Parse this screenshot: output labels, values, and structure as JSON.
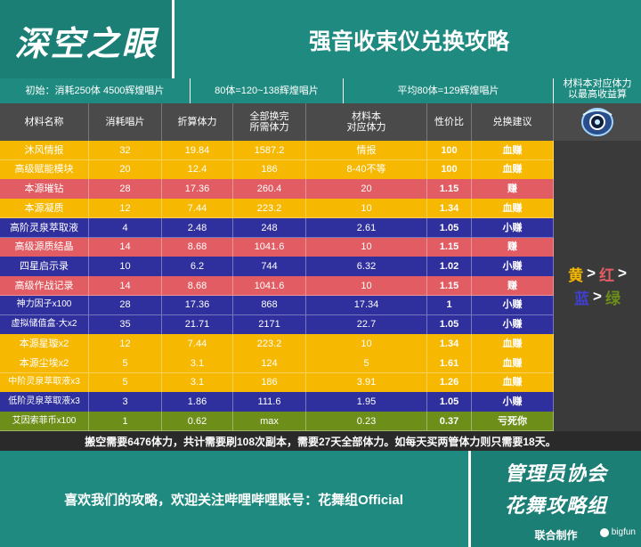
{
  "header": {
    "logo_text": "深空之眼",
    "title": "强音收束仪兑换攻略"
  },
  "info_bar": {
    "c1": "初始：消耗250体 4500辉煌唱片",
    "c2": "80体=120~138辉煌唱片",
    "c3": "平均80体=129辉煌唱片",
    "c4_line1": "材料本对应体力",
    "c4_line2": "以最高收益算"
  },
  "columns": [
    {
      "l1": "材料名称",
      "l2": ""
    },
    {
      "l1": "消耗唱片",
      "l2": ""
    },
    {
      "l1": "折算体力",
      "l2": ""
    },
    {
      "l1": "全部换完",
      "l2": "所需体力"
    },
    {
      "l1": "材料本",
      "l2": "对应体力"
    },
    {
      "l1": "性价比",
      "l2": ""
    },
    {
      "l1": "兑换建议",
      "l2": ""
    }
  ],
  "rows": [
    {
      "color": "yellow",
      "c": [
        "沐风情报",
        "32",
        "19.84",
        "1587.2",
        "情报",
        "100",
        "血赚"
      ]
    },
    {
      "color": "yellow",
      "c": [
        "高级赋能模块",
        "20",
        "12.4",
        "186",
        "8-40不等",
        "100",
        "血赚"
      ]
    },
    {
      "color": "red",
      "c": [
        "本源璀钻",
        "28",
        "17.36",
        "260.4",
        "20",
        "1.15",
        "赚"
      ]
    },
    {
      "color": "yellow",
      "c": [
        "本源凝质",
        "12",
        "7.44",
        "223.2",
        "10",
        "1.34",
        "血赚"
      ]
    },
    {
      "color": "blue",
      "c": [
        "高阶灵泉萃取液",
        "4",
        "2.48",
        "248",
        "2.61",
        "1.05",
        "小赚"
      ]
    },
    {
      "color": "red",
      "c": [
        "高级源质结晶",
        "14",
        "8.68",
        "1041.6",
        "10",
        "1.15",
        "赚"
      ]
    },
    {
      "color": "blue",
      "c": [
        "四星启示录",
        "10",
        "6.2",
        "744",
        "6.32",
        "1.02",
        "小赚"
      ]
    },
    {
      "color": "red",
      "c": [
        "高级作战记录",
        "14",
        "8.68",
        "1041.6",
        "10",
        "1.15",
        "赚"
      ]
    },
    {
      "color": "blue",
      "c": [
        "神力因子x100",
        "28",
        "17.36",
        "868",
        "17.34",
        "1",
        "小赚"
      ]
    },
    {
      "color": "blue",
      "c": [
        "虚拟储值盒·大x2",
        "35",
        "21.71",
        "2171",
        "22.7",
        "1.05",
        "小赚"
      ]
    },
    {
      "color": "yellow",
      "c": [
        "本源星璇x2",
        "12",
        "7.44",
        "223.2",
        "10",
        "1.34",
        "血赚"
      ]
    },
    {
      "color": "yellow",
      "c": [
        "本源尘埃x2",
        "5",
        "3.1",
        "124",
        "5",
        "1.61",
        "血赚"
      ]
    },
    {
      "color": "yellow",
      "c": [
        "中阶灵泉萃取液x3",
        "5",
        "3.1",
        "186",
        "3.91",
        "1.26",
        "血赚"
      ]
    },
    {
      "color": "blue",
      "c": [
        "低阶灵泉萃取液x3",
        "3",
        "1.86",
        "111.6",
        "1.95",
        "1.05",
        "小赚"
      ]
    },
    {
      "color": "green",
      "c": [
        "艾因索菲币x100",
        "1",
        "0.62",
        "max",
        "0.23",
        "0.37",
        "亏死你"
      ]
    }
  ],
  "legend": {
    "yellow": "黄",
    "red": "红",
    "blue": "蓝",
    "green": "绿",
    "arrow": ">",
    "colors": {
      "yellow": "#f6b800",
      "red": "#e15d63",
      "blue": "#3f3fd0",
      "green": "#6d8e18"
    }
  },
  "summary": "搬空需要6476体力，共计需要刷108次副本，需要27天全部体力。如每天买两管体力则只需要18天。",
  "footer": {
    "text": "喜欢我们的攻略，欢迎关注哔哩哔哩账号：花舞组Official",
    "logo1": "管理员协会",
    "logo2": "花舞攻略组",
    "credit": "联合制作",
    "watermark": "bigfun"
  }
}
